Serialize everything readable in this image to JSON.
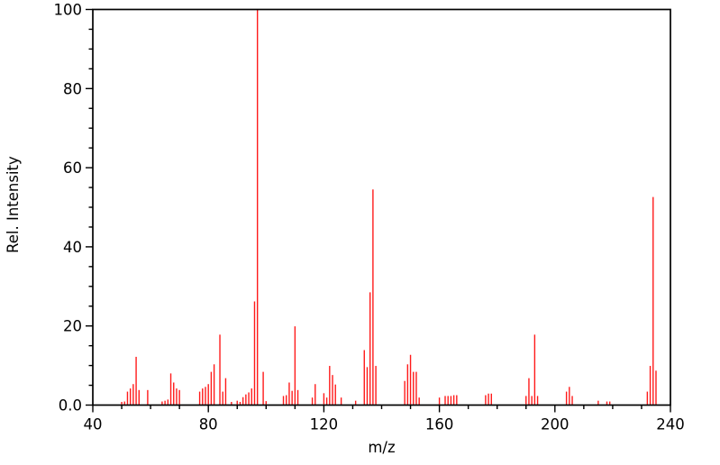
{
  "page": {
    "background": "#ffffff"
  },
  "chart_data": {
    "type": "bar",
    "subtype": "mass-spectrum-sticks",
    "title": "",
    "xlabel": "m/z",
    "ylabel": "Rel. Intensity",
    "xlim": [
      40,
      240
    ],
    "ylim": [
      0,
      100
    ],
    "x_major_ticks": [
      40,
      80,
      120,
      160,
      200,
      240
    ],
    "x_major_tick_labels": [
      "40",
      "80",
      "120",
      "160",
      "200",
      "240"
    ],
    "x_minor_tick_step": 10,
    "y_major_ticks": [
      0,
      20,
      40,
      60,
      80,
      100
    ],
    "y_major_tick_labels": [
      "0.0",
      "20",
      "40",
      "60",
      "80",
      "100"
    ],
    "y_minor_tick_step": 5,
    "grid": false,
    "legend": null,
    "frame": true,
    "bar_color": "#ff1a1a",
    "axis_color": "#000000",
    "peaks": [
      [
        50,
        0.8
      ],
      [
        51,
        0.9
      ],
      [
        52,
        3.4
      ],
      [
        53,
        4.2
      ],
      [
        54,
        5.3
      ],
      [
        55,
        12.2
      ],
      [
        56,
        3.8
      ],
      [
        59,
        3.8
      ],
      [
        64,
        0.9
      ],
      [
        65,
        1.1
      ],
      [
        66,
        1.4
      ],
      [
        67,
        8.0
      ],
      [
        68,
        5.7
      ],
      [
        69,
        4.2
      ],
      [
        70,
        3.8
      ],
      [
        77,
        3.4
      ],
      [
        78,
        4.2
      ],
      [
        79,
        4.6
      ],
      [
        80,
        5.3
      ],
      [
        81,
        8.4
      ],
      [
        82,
        10.3
      ],
      [
        84,
        17.8
      ],
      [
        85,
        3.4
      ],
      [
        86,
        6.8
      ],
      [
        88,
        0.8
      ],
      [
        90,
        1.1
      ],
      [
        91,
        0.8
      ],
      [
        92,
        2.0
      ],
      [
        93,
        2.7
      ],
      [
        94,
        3.2
      ],
      [
        95,
        4.2
      ],
      [
        96,
        26.2
      ],
      [
        97,
        100.0
      ],
      [
        99,
        8.4
      ],
      [
        100,
        1.0
      ],
      [
        106,
        2.3
      ],
      [
        107,
        2.5
      ],
      [
        108,
        5.7
      ],
      [
        109,
        3.6
      ],
      [
        110,
        19.9
      ],
      [
        111,
        3.8
      ],
      [
        116,
        1.9
      ],
      [
        117,
        5.3
      ],
      [
        120,
        3.0
      ],
      [
        121,
        1.9
      ],
      [
        122,
        9.9
      ],
      [
        123,
        7.6
      ],
      [
        124,
        5.2
      ],
      [
        126,
        1.9
      ],
      [
        131,
        1.1
      ],
      [
        134,
        13.9
      ],
      [
        135,
        9.6
      ],
      [
        136,
        28.5
      ],
      [
        137,
        54.5
      ],
      [
        138,
        9.9
      ],
      [
        148,
        6.1
      ],
      [
        149,
        10.3
      ],
      [
        150,
        12.7
      ],
      [
        151,
        8.4
      ],
      [
        152,
        8.4
      ],
      [
        153,
        1.9
      ],
      [
        160,
        1.9
      ],
      [
        162,
        2.3
      ],
      [
        163,
        2.3
      ],
      [
        164,
        2.3
      ],
      [
        165,
        2.5
      ],
      [
        166,
        2.5
      ],
      [
        176,
        2.5
      ],
      [
        177,
        2.9
      ],
      [
        178,
        2.9
      ],
      [
        190,
        2.3
      ],
      [
        191,
        6.8
      ],
      [
        192,
        2.3
      ],
      [
        193,
        17.8
      ],
      [
        194,
        2.3
      ],
      [
        204,
        3.4
      ],
      [
        205,
        4.6
      ],
      [
        206,
        2.3
      ],
      [
        215,
        1.1
      ],
      [
        218,
        0.9
      ],
      [
        219,
        0.9
      ],
      [
        232,
        3.4
      ],
      [
        233,
        9.9
      ],
      [
        234,
        52.6
      ],
      [
        235,
        8.7
      ]
    ]
  }
}
